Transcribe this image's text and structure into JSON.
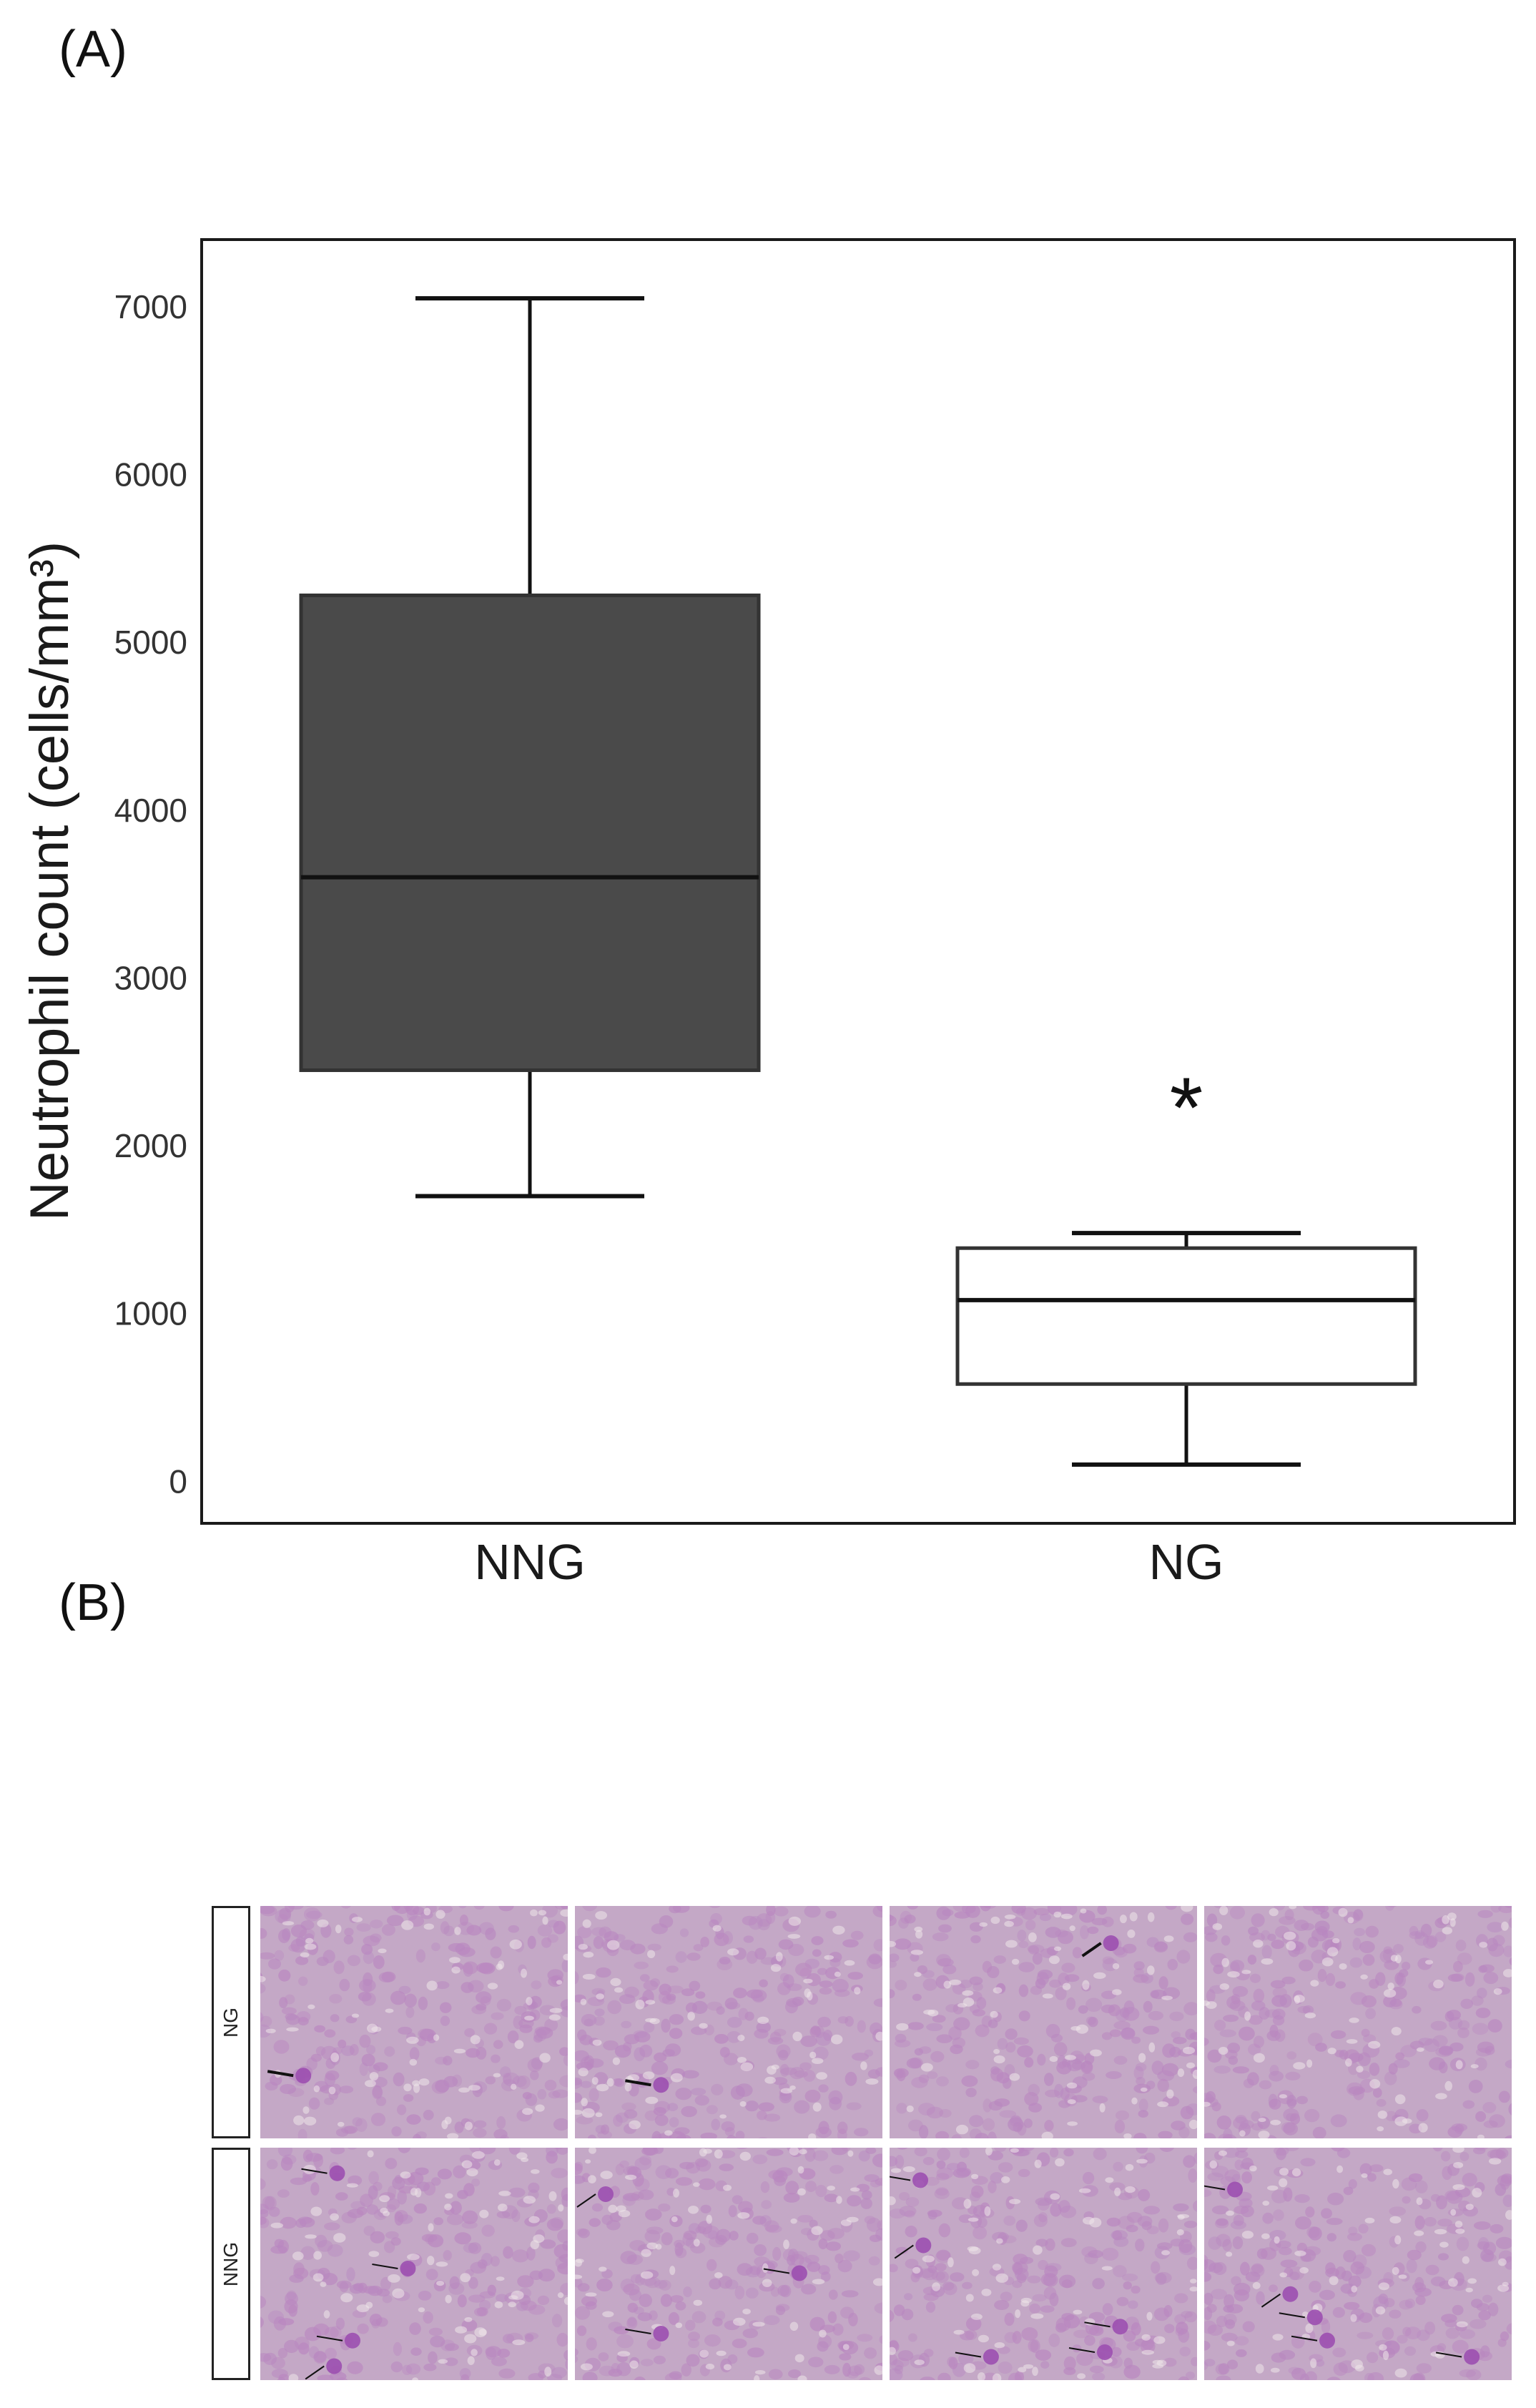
{
  "panel_a_label": "(A)",
  "panel_b_label": "(B)",
  "chart_data": {
    "type": "box",
    "ylabel": "Neutrophil count (cells/mm³)",
    "xlabel": "",
    "ylim": [
      -250,
      7400
    ],
    "yticks": [
      0,
      1000,
      2000,
      3000,
      4000,
      5000,
      6000,
      7000
    ],
    "categories": [
      "NNG",
      "NG"
    ],
    "boxes": [
      {
        "category": "NNG",
        "min": 1700,
        "q1": 2450,
        "median": 3600,
        "q3": 5280,
        "max": 7050,
        "fill": "#4a4a4a"
      },
      {
        "category": "NG",
        "min": 100,
        "q1": 580,
        "median": 1080,
        "q3": 1390,
        "max": 1480,
        "fill": "#ffffff"
      }
    ],
    "annotations": [
      {
        "category": "NG",
        "y": 2350,
        "text": "*"
      }
    ],
    "grid": false,
    "legend": "none"
  },
  "micrographs": {
    "rows": [
      {
        "label": "NG",
        "tiles": 4
      },
      {
        "label": "NNG",
        "tiles": 4
      }
    ],
    "colors": {
      "background": "#c4a8c6",
      "cell": "#b987c0",
      "neutrophil": "#9c4fb0",
      "arrow": "#111111"
    }
  }
}
